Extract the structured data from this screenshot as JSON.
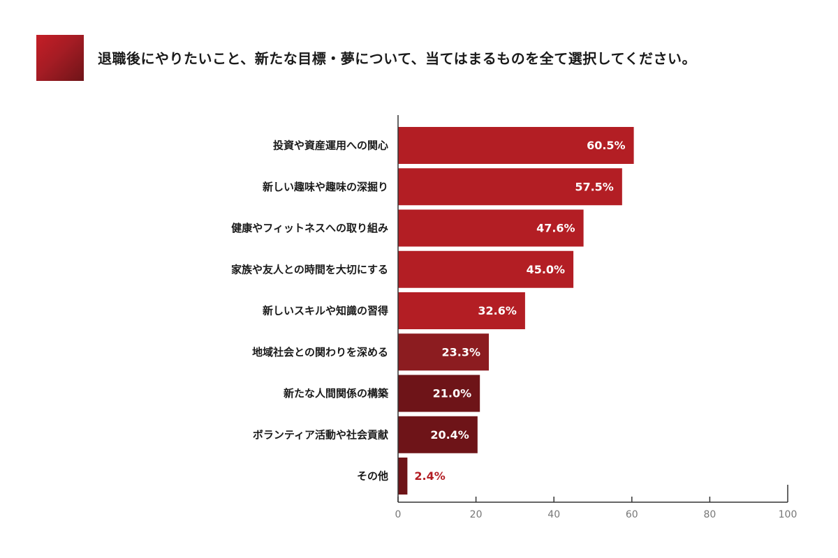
{
  "title": "退職後にやりたいこと、新たな目標・夢について、当てはまるものを全て選択してください。",
  "colors": {
    "title_block": "#b31e24",
    "bar_main": "#b31e24",
    "bar_mid": "#8c1c20",
    "bar_dark": "#6e1418",
    "axis": "#333333",
    "outside_label": "#b31e24"
  },
  "chart_data": {
    "type": "bar",
    "orientation": "horizontal",
    "categories": [
      "投資や資産運用への関心",
      "新しい趣味や趣味の深掘り",
      "健康やフィットネスへの取り組み",
      "家族や友人との時間を大切にする",
      "新しいスキルや知識の習得",
      "地域社会との関わりを深める",
      "新たな人間関係の構築",
      "ボランティア活動や社会貢献",
      "その他"
    ],
    "values": [
      60.5,
      57.5,
      47.6,
      45.0,
      32.6,
      23.3,
      21.0,
      20.4,
      2.4
    ],
    "value_labels": [
      "60.5%",
      "57.5%",
      "47.6%",
      "45.0%",
      "32.6%",
      "23.3%",
      "21.0%",
      "20.4%",
      "2.4%"
    ],
    "bar_colors": [
      "#b31e24",
      "#b31e24",
      "#b31e24",
      "#b31e24",
      "#b31e24",
      "#8c1c20",
      "#6e1418",
      "#6e1418",
      "#6e1418"
    ],
    "xlim": [
      0,
      100
    ],
    "xticks": [
      0,
      20,
      40,
      60,
      80,
      100
    ],
    "grid": false,
    "legend": "none"
  }
}
